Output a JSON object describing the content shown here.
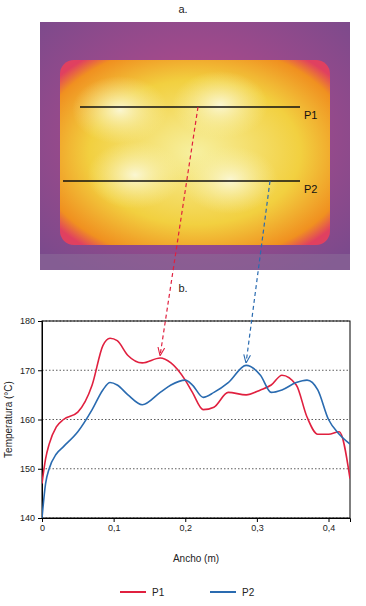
{
  "chart_data": {
    "type": "line",
    "annotations": [
      {
        "text": "a."
      },
      {
        "text": "b."
      }
    ],
    "x_label": "Ancho (m)",
    "y_label": "Temperatura (°C)",
    "x": [
      0,
      0.005,
      0.01,
      0.02,
      0.03,
      0.05,
      0.07,
      0.085,
      0.095,
      0.105,
      0.12,
      0.14,
      0.165,
      0.18,
      0.2,
      0.21,
      0.225,
      0.24,
      0.26,
      0.285,
      0.305,
      0.32,
      0.335,
      0.355,
      0.37,
      0.385,
      0.4,
      0.415,
      0.43
    ],
    "series": [
      {
        "name": "P1",
        "color": "#e0203f",
        "values": [
          147,
          152,
          155,
          158.5,
          160,
          161.5,
          167,
          175,
          176.5,
          176,
          173,
          171.5,
          172.5,
          171.5,
          168,
          165.5,
          162,
          162.5,
          165.5,
          165,
          166,
          167,
          169,
          167,
          160.5,
          157,
          157,
          157.5,
          148
        ]
      },
      {
        "name": "P2",
        "color": "#2a6bb0",
        "values": [
          140,
          147,
          150,
          153,
          154.5,
          157.5,
          162,
          166,
          167.5,
          167,
          165,
          163,
          165.5,
          167,
          168,
          167,
          164.5,
          165.5,
          167.5,
          171,
          169,
          165.5,
          166,
          167.5,
          168,
          166,
          160,
          157,
          155
        ]
      }
    ],
    "xlim": [
      0,
      0.43
    ],
    "xticks": [
      0,
      {
        "value": 0.1,
        "label": "0,1"
      },
      {
        "value": 0.2,
        "label": "0,2"
      },
      {
        "value": 0.3,
        "label": "0,3"
      },
      {
        "value": 0.4,
        "label": "0,4"
      }
    ],
    "ylim": [
      140,
      180
    ],
    "yticks": [
      140,
      150,
      160,
      170,
      180
    ],
    "grid": true,
    "legend": "bottom"
  }
}
